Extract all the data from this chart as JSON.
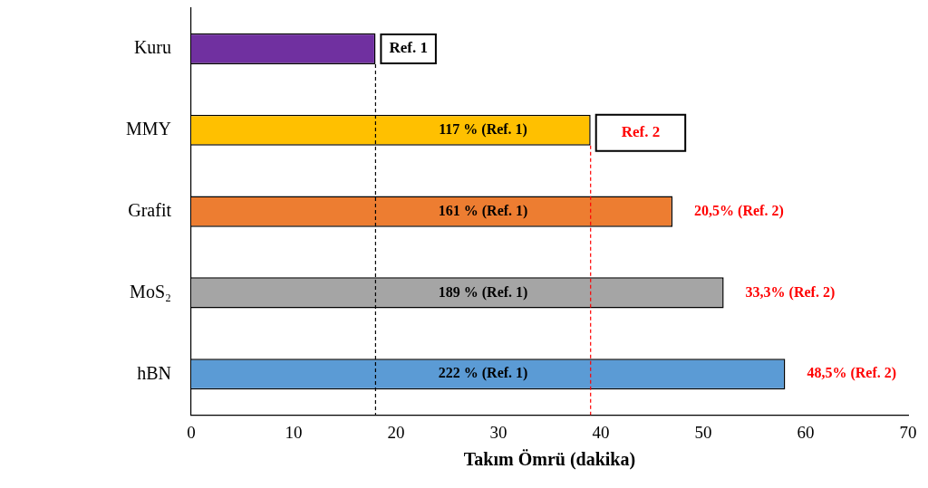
{
  "chart_data": {
    "type": "bar",
    "orientation": "horizontal",
    "xlabel": "Takım Ömrü (dakika)",
    "categories": [
      "Kuru",
      "MMY",
      "Grafit",
      "MoS₂",
      "hBN"
    ],
    "values": [
      18,
      39,
      47,
      52,
      58
    ],
    "colors": [
      "#7030a0",
      "#ffc000",
      "#ed7d31",
      "#a5a5a5",
      "#5b9bd5"
    ],
    "xlim": [
      0,
      70
    ],
    "xticks": [
      0,
      10,
      20,
      30,
      40,
      50,
      60,
      70
    ],
    "grid": false,
    "ref_lines": [
      {
        "axis": "x",
        "value": 18,
        "label": "Ref. 1",
        "color": "#000000",
        "line_style": "dashed"
      },
      {
        "axis": "x",
        "value": 39,
        "label": "Ref. 2",
        "color": "#ff0000",
        "line_style": "dashed"
      }
    ],
    "annotations": [
      "117 % (Ref. 1)",
      "161 % (Ref. 1)",
      "189 % (Ref. 1)",
      "222 % (Ref. 1)",
      {
        "text": "20,5% (Ref. 2)",
        "x": 47,
        "y": "Grafit"
      },
      {
        "text": "33,3% (Ref. 2)",
        "x": 52,
        "y": "MoS₂"
      },
      {
        "text": "48,5% (Ref. 2)",
        "x": 58,
        "y": "hBN"
      }
    ]
  }
}
